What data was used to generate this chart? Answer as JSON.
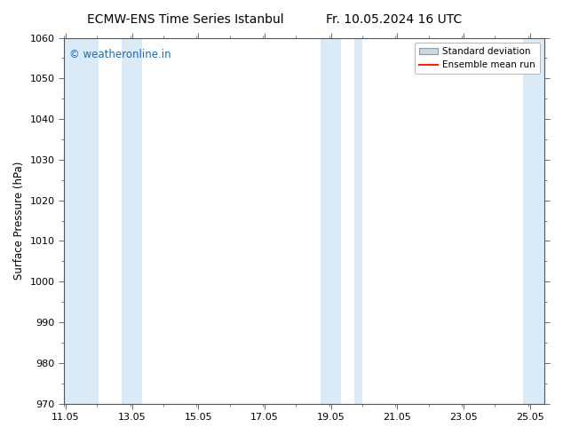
{
  "title_left": "ECMW-ENS Time Series Istanbul",
  "title_right": "Fr. 10.05.2024 16 UTC",
  "ylabel": "Surface Pressure (hPa)",
  "ylim": [
    970,
    1060
  ],
  "yticks": [
    970,
    980,
    990,
    1000,
    1010,
    1020,
    1030,
    1040,
    1050,
    1060
  ],
  "xlim_start": 11.0,
  "xlim_end": 25.5,
  "xtick_labels": [
    "11.05",
    "13.05",
    "15.05",
    "17.05",
    "19.05",
    "21.05",
    "23.05",
    "25.05"
  ],
  "xtick_positions": [
    11.05,
    13.05,
    15.05,
    17.05,
    19.05,
    21.05,
    23.05,
    25.05
  ],
  "shaded_bands": [
    {
      "x_start": 11.0,
      "x_end": 12.05,
      "color": "#daeaf7"
    },
    {
      "x_start": 12.75,
      "x_end": 13.35,
      "color": "#daeaf7"
    },
    {
      "x_start": 18.75,
      "x_end": 19.35,
      "color": "#daeaf7"
    },
    {
      "x_start": 19.75,
      "x_end": 20.0,
      "color": "#daeaf7"
    },
    {
      "x_start": 24.85,
      "x_end": 25.5,
      "color": "#daeaf7"
    }
  ],
  "watermark_text": "© weatheronline.in",
  "watermark_color": "#1a6bb5",
  "background_color": "#ffffff",
  "plot_bg_color": "#ffffff",
  "legend_std_color": "#c8d8e4",
  "legend_std_edge": "#999999",
  "legend_mean_color": "#ff2200",
  "title_fontsize": 10,
  "axis_label_fontsize": 8.5,
  "tick_fontsize": 8
}
